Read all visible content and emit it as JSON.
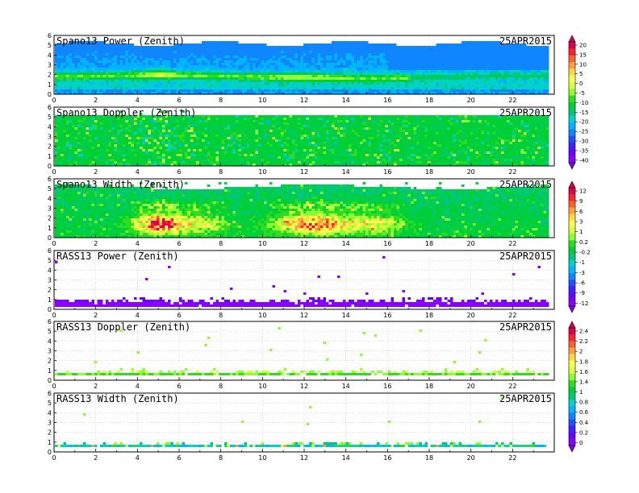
{
  "chart_data": [
    {
      "type": "heatmap",
      "title": "Spano13 Power (Zenith)",
      "date": "25APR2015",
      "xlim": [
        0,
        24
      ],
      "ylim": [
        0,
        6
      ],
      "xticks": [
        0,
        2,
        4,
        6,
        8,
        10,
        12,
        14,
        16,
        18,
        20,
        22
      ],
      "yticks": [
        0,
        1,
        2,
        3,
        4,
        5,
        6
      ],
      "profile": "power"
    },
    {
      "type": "heatmap",
      "title": "Spano13 Doppler (Zenith)",
      "date": "25APR2015",
      "xlim": [
        0,
        24
      ],
      "ylim": [
        0,
        6
      ],
      "xticks": [
        0,
        2,
        4,
        6,
        8,
        10,
        12,
        14,
        16,
        18,
        20,
        22
      ],
      "yticks": [
        0,
        1,
        2,
        3,
        4,
        5,
        6
      ],
      "profile": "doppler"
    },
    {
      "type": "heatmap",
      "title": "Spano13 Width (Zenith)",
      "date": "25APR2015",
      "xlim": [
        0,
        24
      ],
      "ylim": [
        0,
        6
      ],
      "xticks": [
        0,
        2,
        4,
        6,
        8,
        10,
        12,
        14,
        16,
        18,
        20,
        22
      ],
      "yticks": [
        0,
        1,
        2,
        3,
        4,
        5,
        6
      ],
      "profile": "width"
    },
    {
      "type": "heatmap",
      "title": "RASS13 Power (Zenith)",
      "date": "25APR2015",
      "xlim": [
        0,
        24
      ],
      "ylim": [
        0,
        6
      ],
      "xticks": [
        0,
        2,
        4,
        6,
        8,
        10,
        12,
        14,
        16,
        18,
        20,
        22
      ],
      "yticks": [
        0,
        1,
        2,
        3,
        4,
        5,
        6
      ],
      "profile": "rass_power"
    },
    {
      "type": "heatmap",
      "title": "RASS13 Doppler (Zenith)",
      "date": "25APR2015",
      "xlim": [
        0,
        24
      ],
      "ylim": [
        0,
        6
      ],
      "xticks": [
        0,
        2,
        4,
        6,
        8,
        10,
        12,
        14,
        16,
        18,
        20,
        22
      ],
      "yticks": [
        0,
        1,
        2,
        3,
        4,
        5,
        6
      ],
      "profile": "rass_doppler"
    },
    {
      "type": "heatmap",
      "title": "RASS13 Width (Zenith)",
      "date": "25APR2015",
      "xlim": [
        0,
        24
      ],
      "ylim": [
        0,
        6
      ],
      "xticks": [
        0,
        2,
        4,
        6,
        8,
        10,
        12,
        14,
        16,
        18,
        20,
        22
      ],
      "yticks": [
        0,
        1,
        2,
        3,
        4,
        5,
        6
      ],
      "profile": "rass_width"
    }
  ],
  "colorbars": [
    {
      "labels": [
        "20",
        "15",
        "10",
        "5",
        "0",
        "-5",
        "-10",
        "-15",
        "-20",
        "-25",
        "-30",
        "-35",
        "-40"
      ]
    },
    {
      "labels": [
        "12",
        "9",
        "6",
        "3",
        "1",
        "0.2",
        "-0.2",
        "-1",
        "-3",
        "-6",
        "-9",
        "-12"
      ]
    },
    {
      "labels": [
        "2.4",
        "2.2",
        "2",
        "1.8",
        "1.6",
        "1.4",
        "1",
        "0.8",
        "0.6",
        "0.4",
        "0.2",
        "0"
      ]
    }
  ],
  "palette": [
    "#8a00ff",
    "#6a00ff",
    "#3f1fff",
    "#1f4fff",
    "#0f86ff",
    "#00b4ff",
    "#00d2c8",
    "#00c878",
    "#00d038",
    "#30dc20",
    "#8cff30",
    "#d8ff40",
    "#ffff50",
    "#ffd940",
    "#ffa040",
    "#ff6030",
    "#ff2030",
    "#dd0050"
  ]
}
